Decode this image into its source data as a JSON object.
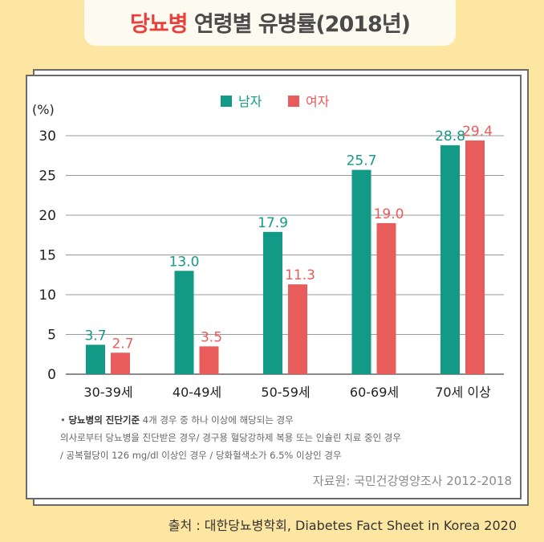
{
  "title": {
    "highlight": "당뇨병",
    "rest": " 연령별 유병률(2018년)"
  },
  "notes": {
    "bullet": "•",
    "criteria_label": "당뇨병의 진단기준",
    "criteria_text": " 4개 경우 중 하나 이상에 해당되는 경우",
    "line2": "의사로부터 당뇨병을 진단받은 경우/ 경구용 혈당강하제 복용 또는 인슐린 치료 중인 경우",
    "line3": "/ 공복혈당이 126 mg/dl 이상인 경우 / 당화혈색소가 6.5% 이상인 경우"
  },
  "source": "자료원: 국민건강영양조사 2012-2018",
  "credit": "출처 : 대한당뇨병학회, Diabetes Fact Sheet in Korea 2020",
  "chart_data": {
    "type": "bar",
    "ylabel": "(%)",
    "ylim": [
      0,
      30
    ],
    "yticks": [
      0,
      5,
      10,
      15,
      20,
      25,
      30
    ],
    "grid": true,
    "legend": "top-center",
    "categories": [
      "30-39세",
      "40-49세",
      "50-59세",
      "60-69세",
      "70세 이상"
    ],
    "series": [
      {
        "name": "남자",
        "color": "#139a87",
        "values": [
          3.7,
          13.0,
          17.9,
          25.7,
          28.8
        ]
      },
      {
        "name": "여자",
        "color": "#e85c5c",
        "values": [
          2.7,
          3.5,
          11.3,
          19.0,
          29.4
        ]
      }
    ]
  }
}
